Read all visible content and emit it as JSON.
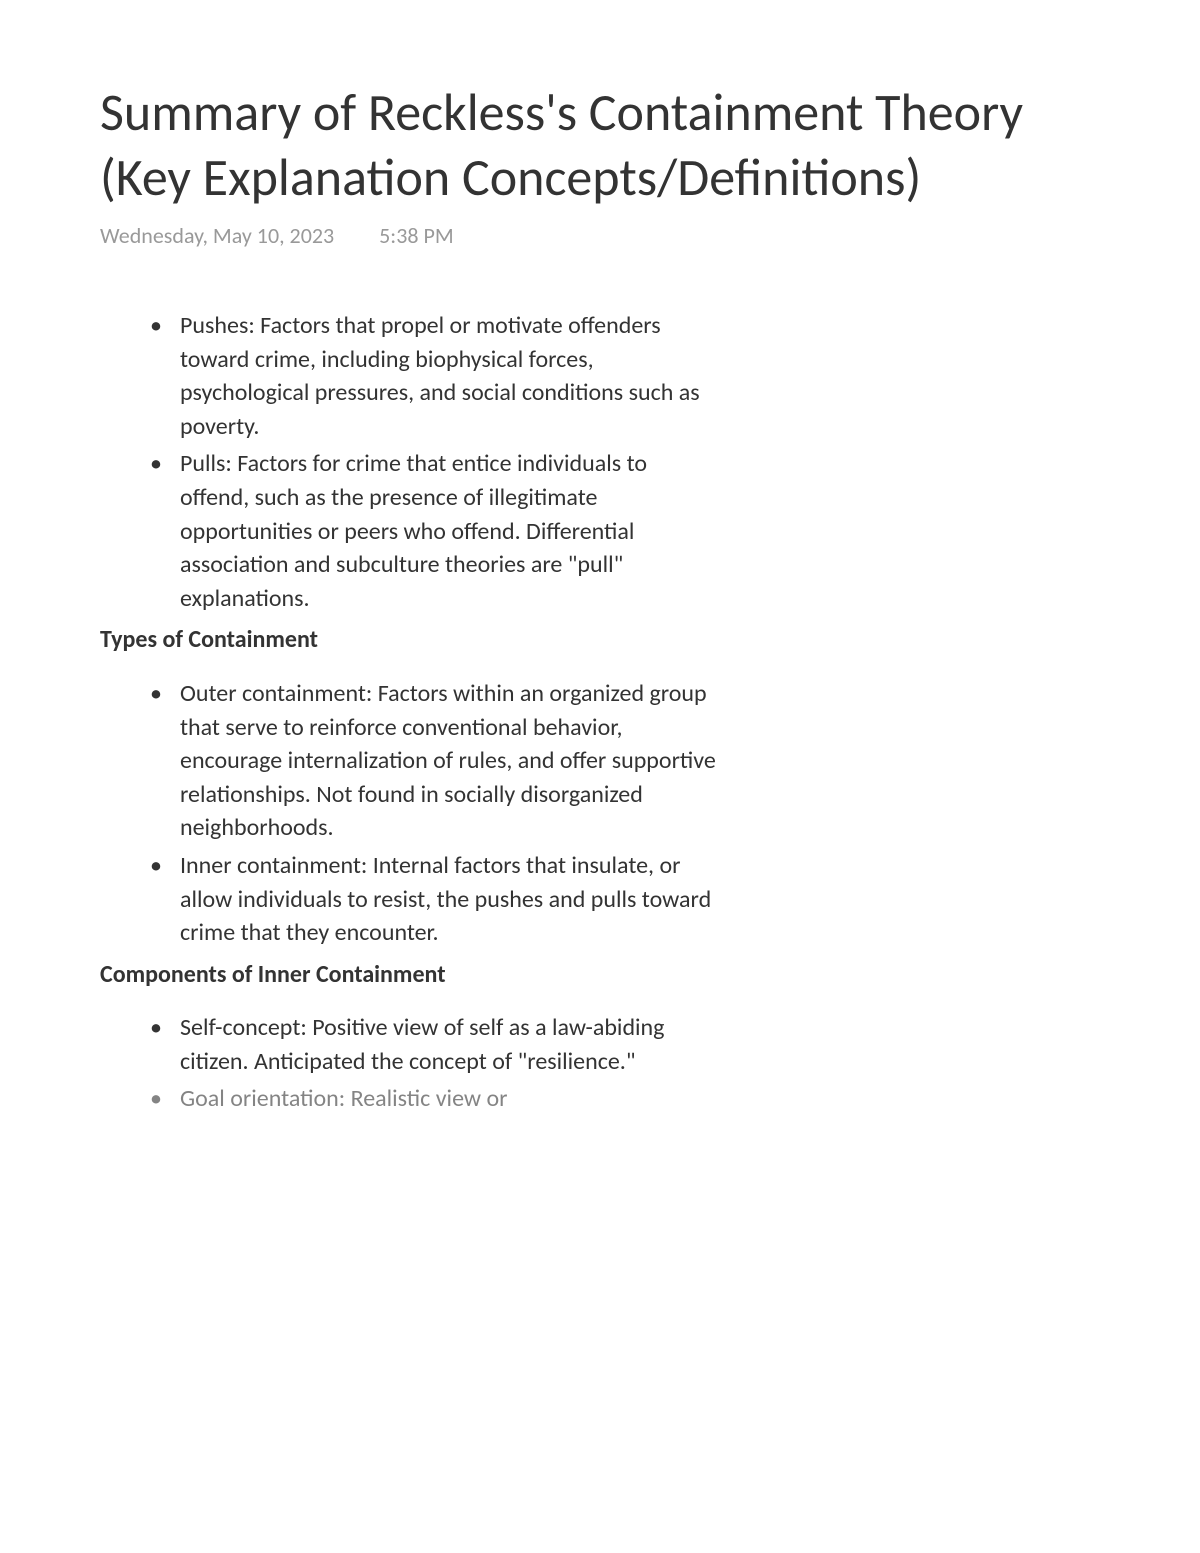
{
  "title": "Summary of Reckless's Containment Theory (Key Explanation Concepts/Definitions)",
  "meta": {
    "date": "Wednesday, May 10, 2023",
    "time": "5:38 PM"
  },
  "sections": [
    {
      "heading": "",
      "items": [
        "Pushes: Factors that propel or motivate offenders toward crime, including biophysical forces, psychological pressures, and social conditions such as poverty.",
        "Pulls: Factors for crime that entice individuals to offend, such as the presence of illegitimate opportunities or peers who offend. Differential association and subculture theories are \"pull\" explanations."
      ]
    },
    {
      "heading": "Types of Containment",
      "items": [
        "Outer containment: Factors within an organized group that serve to reinforce conventional behavior, encourage internalization of rules, and offer supportive relationships. Not found in socially disorganized neighborhoods.",
        "Inner containment: Internal factors that insulate, or allow individuals to resist, the pushes and pulls toward crime that they encounter."
      ]
    },
    {
      "heading": "Components of Inner Containment",
      "items": [
        "Self-concept: Positive view of self as a law-abiding citizen. Anticipated the concept of \"resilience.\"",
        "Goal orientation: Realistic view or"
      ]
    }
  ],
  "colors": {
    "background": "#ffffff",
    "title_text": "#333333",
    "meta_text": "#999999",
    "body_text": "#333333"
  },
  "typography": {
    "title_fontsize": 52,
    "title_weight": 300,
    "meta_fontsize": 22,
    "body_fontsize": 24,
    "heading_weight": 700
  }
}
